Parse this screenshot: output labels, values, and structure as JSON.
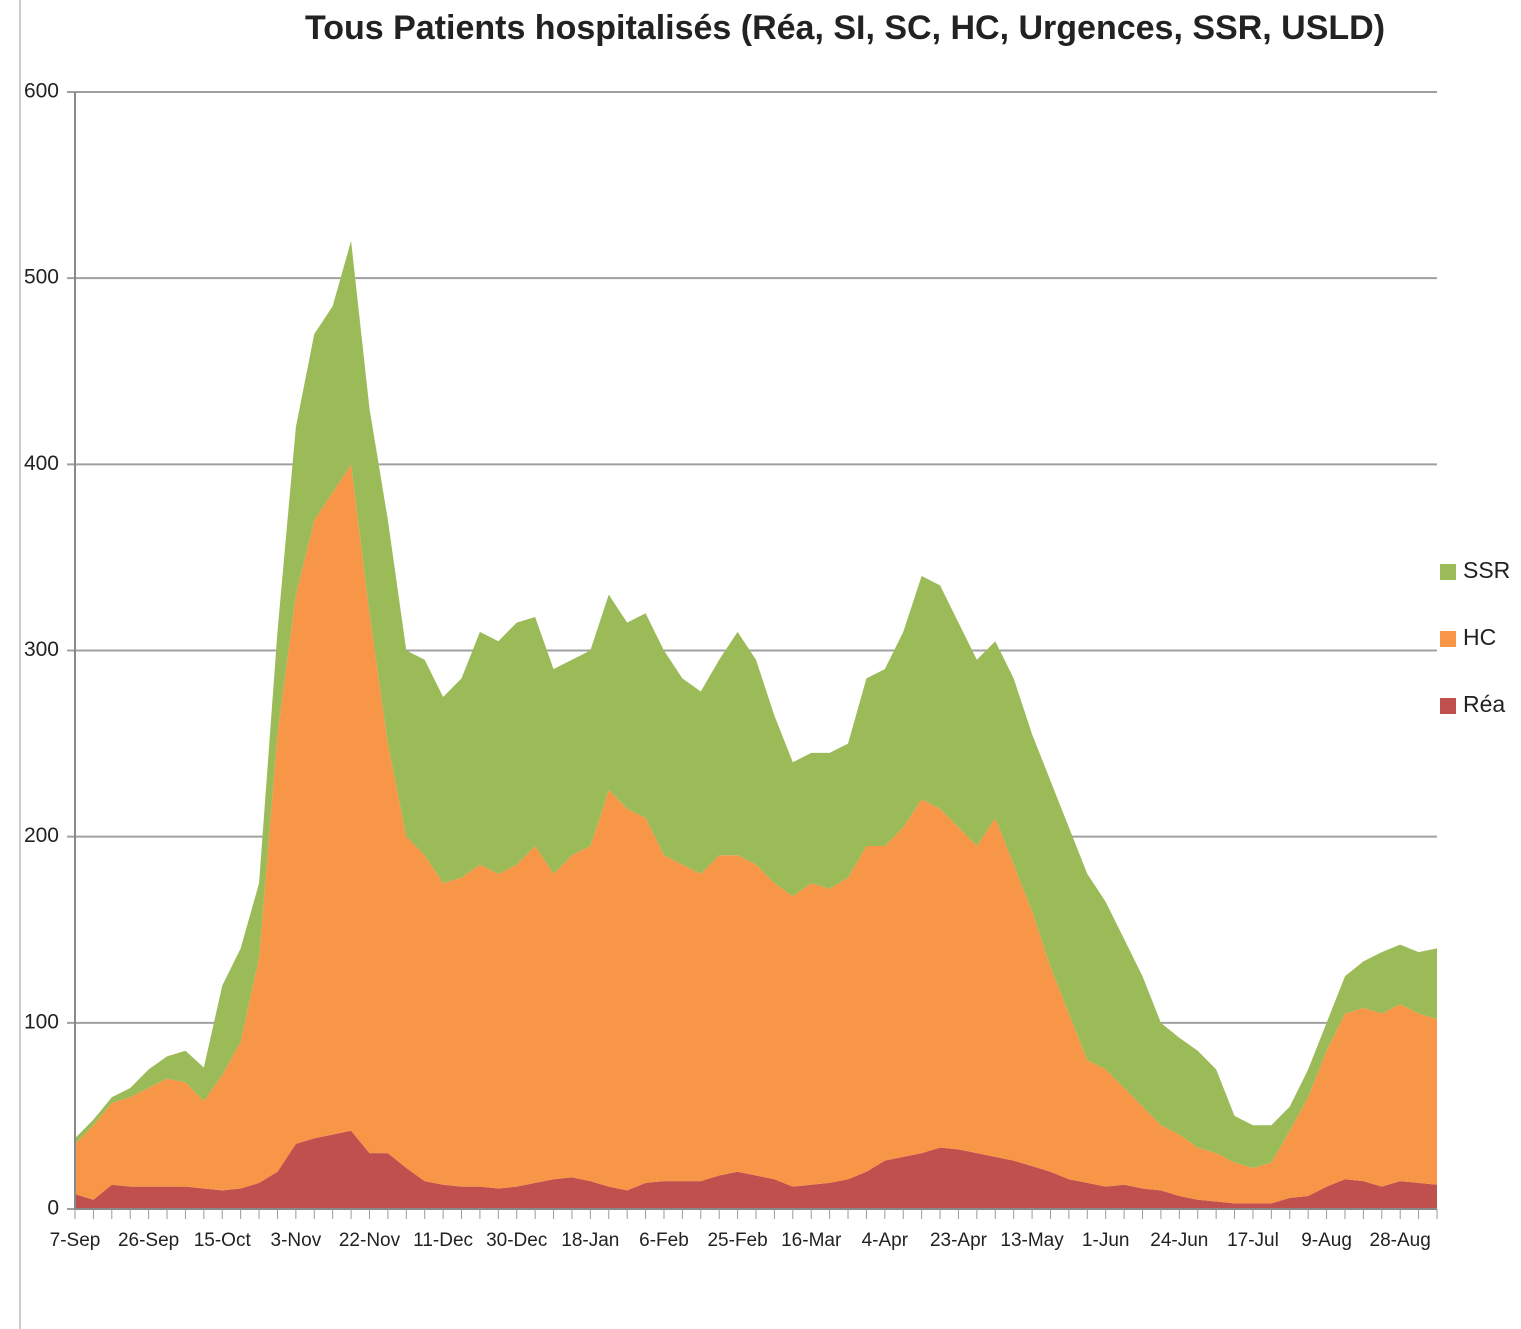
{
  "chart_data": {
    "type": "stacked_area",
    "title": "Tous Patients hospitalisés (Réa, SI, SC, HC, Urgences, SSR, USLD)",
    "categories": [
      "7-Sep",
      null,
      null,
      null,
      "26-Sep",
      null,
      null,
      null,
      "15-Oct",
      null,
      null,
      null,
      "3-Nov",
      null,
      null,
      null,
      "22-Nov",
      null,
      null,
      null,
      "11-Dec",
      null,
      null,
      null,
      "30-Dec",
      null,
      null,
      null,
      "18-Jan",
      null,
      null,
      null,
      "6-Feb",
      null,
      null,
      null,
      "25-Feb",
      null,
      null,
      null,
      "16-Mar",
      null,
      null,
      null,
      "4-Apr",
      null,
      null,
      null,
      "23-Apr",
      null,
      null,
      null,
      "13-May",
      null,
      null,
      null,
      "1-Jun",
      null,
      null,
      null,
      "24-Jun",
      null,
      null,
      null,
      "17-Jul",
      null,
      null,
      null,
      "9-Aug",
      null,
      null,
      null,
      "28-Aug",
      null,
      null
    ],
    "series": [
      {
        "name": "Réa",
        "color": "#c0504d",
        "values": [
          8,
          5,
          13,
          12,
          12,
          12,
          12,
          11,
          10,
          11,
          14,
          20,
          35,
          38,
          40,
          42,
          30,
          30,
          22,
          15,
          13,
          12,
          12,
          11,
          12,
          14,
          16,
          17,
          15,
          12,
          10,
          14,
          15,
          15,
          15,
          18,
          20,
          18,
          16,
          12,
          13,
          14,
          16,
          20,
          26,
          28,
          30,
          33,
          32,
          30,
          28,
          26,
          23,
          20,
          16,
          14,
          12,
          13,
          11,
          10,
          7,
          5,
          4,
          3,
          3,
          3,
          6,
          7,
          12,
          16,
          15,
          12,
          15,
          14,
          13
        ]
      },
      {
        "name": "HC",
        "color": "#f79646",
        "values": [
          27,
          40,
          44,
          48,
          53,
          58,
          56,
          47,
          62,
          79,
          121,
          235,
          295,
          332,
          345,
          358,
          290,
          220,
          178,
          175,
          162,
          166,
          173,
          169,
          173,
          181,
          164,
          173,
          180,
          213,
          205,
          196,
          175,
          170,
          165,
          172,
          170,
          167,
          159,
          156,
          162,
          158,
          162,
          175,
          169,
          177,
          190,
          182,
          173,
          165,
          182,
          159,
          137,
          110,
          89,
          66,
          63,
          52,
          44,
          35,
          33,
          28,
          26,
          22,
          19,
          22,
          36,
          53,
          73,
          89,
          93,
          93,
          95,
          91,
          89
        ]
      },
      {
        "name": "SSR",
        "color": "#9bbb59",
        "values": [
          3,
          3,
          3,
          5,
          10,
          12,
          17,
          18,
          48,
          50,
          40,
          55,
          90,
          100,
          100,
          120,
          110,
          120,
          100,
          105,
          100,
          107,
          125,
          125,
          130,
          123,
          110,
          105,
          105,
          105,
          100,
          110,
          110,
          100,
          98,
          105,
          120,
          110,
          90,
          72,
          70,
          73,
          72,
          90,
          95,
          105,
          120,
          120,
          110,
          100,
          95,
          100,
          95,
          100,
          100,
          100,
          90,
          80,
          70,
          55,
          52,
          52,
          45,
          25,
          23,
          20,
          13,
          15,
          15,
          20,
          25,
          33,
          32,
          33,
          38
        ]
      }
    ],
    "ylim": [
      0,
      600
    ],
    "yticks": [
      0,
      100,
      200,
      300,
      400,
      500,
      600
    ],
    "grid": true,
    "legend": "right"
  }
}
